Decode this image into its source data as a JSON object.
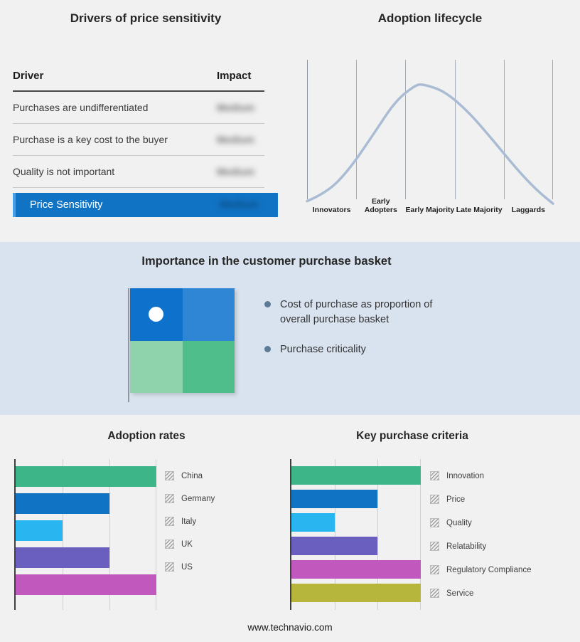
{
  "colors": {
    "accent_blue": "#1173c4",
    "band_bg": "#d9e3ef",
    "curve": "#a9bcd4",
    "quadrant": [
      "#0e72cc",
      "#2f86d4",
      "#8fd3ac",
      "#4fbe8a"
    ]
  },
  "drivers_panel": {
    "title": "Drivers of price sensitivity",
    "col_driver": "Driver",
    "col_impact": "Impact",
    "rows": [
      {
        "driver": "Purchases are undifferentiated",
        "impact": "Medium"
      },
      {
        "driver": "Purchase is a key cost to the buyer",
        "impact": "Medium"
      },
      {
        "driver": "Quality is not important",
        "impact": "Medium"
      }
    ],
    "summary": {
      "label": "Price Sensitivity",
      "impact": "Medium"
    }
  },
  "lifecycle_panel": {
    "title": "Adoption lifecycle",
    "phases": [
      "Innovators",
      "Early Adopters",
      "Early Majority",
      "Late Majority",
      "Laggards"
    ]
  },
  "basket_panel": {
    "title": "Importance in the customer purchase basket",
    "bullets": [
      "Cost of purchase as proportion of overall purchase basket",
      "Purchase criticality"
    ]
  },
  "chart_data": [
    {
      "type": "bar",
      "orientation": "horizontal",
      "title": "Adoption rates",
      "categories": [
        "China",
        "Germany",
        "Italy",
        "UK",
        "US"
      ],
      "values": [
        3,
        2,
        1,
        2,
        3
      ],
      "colors": [
        "#3eb489",
        "#1173c4",
        "#29b5f0",
        "#6a5fbe",
        "#c058bd"
      ],
      "xlim": [
        0,
        3
      ],
      "grid": true,
      "legend_position": "right"
    },
    {
      "type": "bar",
      "orientation": "horizontal",
      "title": "Key purchase criteria",
      "categories": [
        "Innovation",
        "Price",
        "Quality",
        "Relatability",
        "Regulatory Compliance",
        "Service"
      ],
      "values": [
        3,
        2,
        1,
        2,
        3,
        3
      ],
      "colors": [
        "#3eb489",
        "#1173c4",
        "#29b5f0",
        "#6a5fbe",
        "#c058bd",
        "#b7b63c"
      ],
      "xlim": [
        0,
        3
      ],
      "grid": true,
      "legend_position": "right"
    },
    {
      "type": "line",
      "title": "Adoption lifecycle",
      "categories": [
        "Innovators",
        "Early Adopters",
        "Early Majority",
        "Late Majority",
        "Laggards"
      ],
      "curve_points_norm": [
        [
          0,
          0.02
        ],
        [
          0.08,
          0.09
        ],
        [
          0.17,
          0.28
        ],
        [
          0.27,
          0.58
        ],
        [
          0.36,
          0.86
        ],
        [
          0.44,
          0.99
        ],
        [
          0.47,
          1.0
        ],
        [
          0.56,
          0.94
        ],
        [
          0.66,
          0.76
        ],
        [
          0.76,
          0.52
        ],
        [
          0.86,
          0.27
        ],
        [
          0.94,
          0.1
        ],
        [
          1,
          0.0
        ]
      ]
    }
  ],
  "footer": {
    "url": "www.technavio.com"
  }
}
